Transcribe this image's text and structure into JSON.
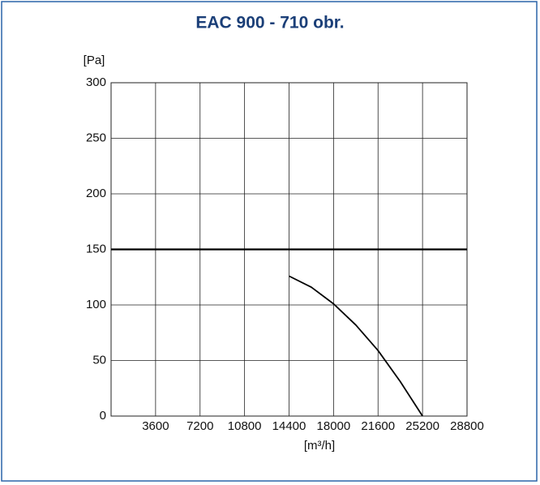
{
  "chart_data": {
    "type": "line",
    "title": "EAC 900 - 710 obr.",
    "y_label": "[Pa]",
    "x_label": "[m³/h]",
    "x": [
      14400,
      16200,
      18000,
      19800,
      21600,
      23400,
      25200
    ],
    "series": [
      {
        "color": "#000000",
        "values": [
          126,
          116,
          101,
          82,
          59,
          31,
          0
        ]
      }
    ],
    "xlim": [
      0,
      28800
    ],
    "xticks": [
      3600,
      7200,
      10800,
      14400,
      18000,
      21600,
      25200,
      28800
    ],
    "ylim": [
      0,
      300
    ],
    "yticks": [
      0,
      50,
      100,
      150,
      200,
      250,
      300
    ],
    "reference_line": 150,
    "grid": true
  }
}
